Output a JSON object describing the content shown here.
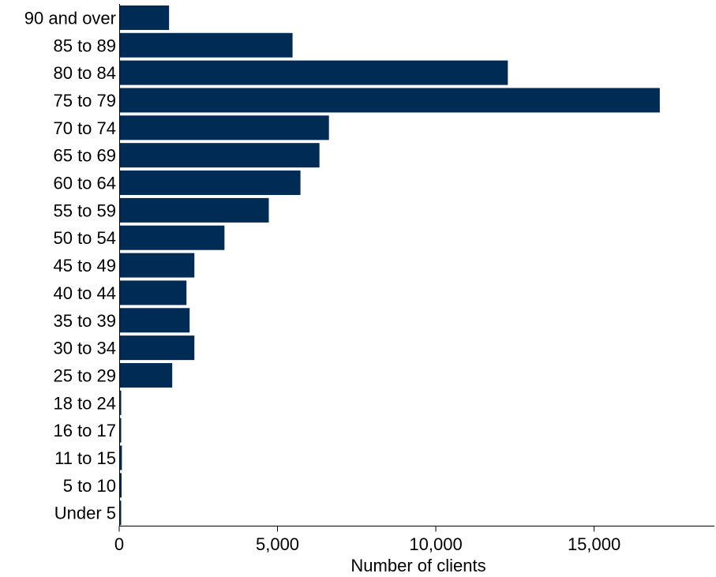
{
  "chart_data": {
    "type": "bar",
    "orientation": "horizontal",
    "categories": [
      "90 and over",
      "85 to 89",
      "80 to 84",
      "75 to 79",
      "70 to 74",
      "65 to 69",
      "60 to 64",
      "55 to 59",
      "50 to 54",
      "45 to 49",
      "40 to 44",
      "35 to 39",
      "30 to 34",
      "25 to 29",
      "18 to 24",
      "16 to 17",
      "11 to 15",
      "5 to 10",
      "Under 5"
    ],
    "values": [
      1550,
      5450,
      12250,
      17050,
      6600,
      6300,
      5700,
      4700,
      3300,
      2350,
      2100,
      2200,
      2350,
      1650,
      30,
      20,
      60,
      50,
      30
    ],
    "xlabel": "Number of clients",
    "ylabel": "",
    "xlim": [
      0,
      18800
    ],
    "xticks": [
      0,
      5000,
      10000,
      15000
    ],
    "xtick_labels": [
      "0",
      "5,000",
      "10,000",
      "15,000"
    ],
    "grid": false,
    "legend": "none",
    "colors": {
      "bar": "#002b55",
      "axis": "#000000"
    }
  }
}
